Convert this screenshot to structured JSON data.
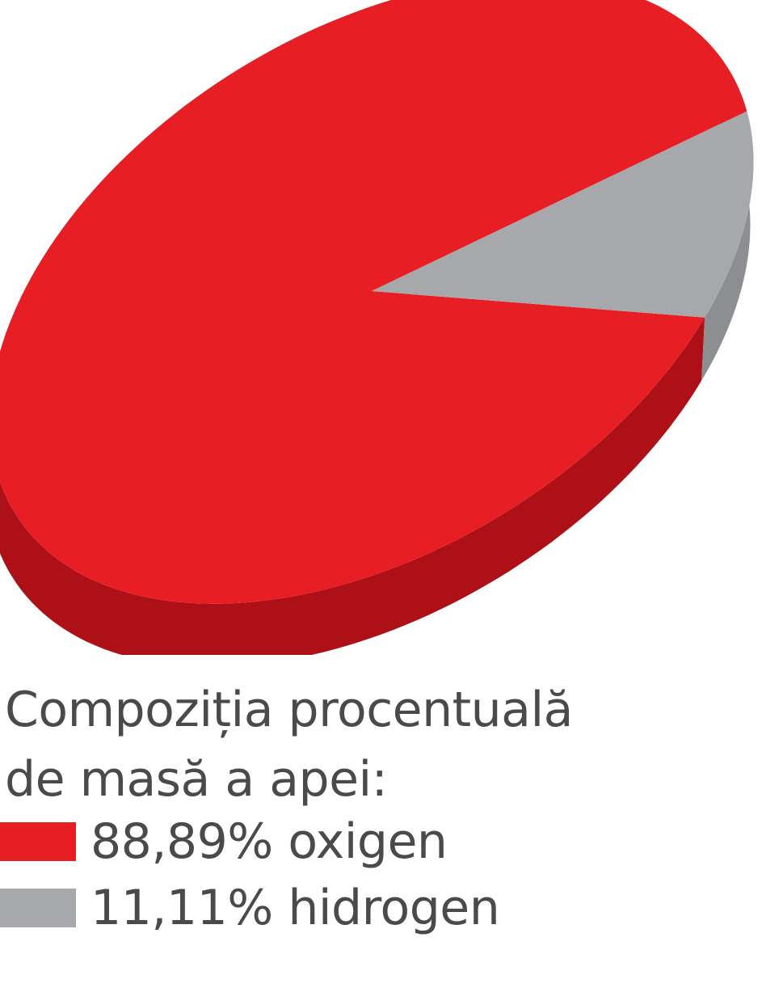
{
  "chart_data": {
    "type": "pie",
    "style": "3d",
    "title_lines": [
      "Compoziția procentuală",
      "de masă a apei:"
    ],
    "slices": [
      {
        "name": "oxigen",
        "value": 88.89,
        "label": "88,89% oxigen",
        "color": "#e81e25",
        "side_color": "#ad1016"
      },
      {
        "name": "hidrogen",
        "value": 11.11,
        "label": "11,11% hidrogen",
        "color": "#a7a8ab",
        "side_color": "#8d8e91"
      }
    ],
    "legend_position": "bottom"
  }
}
